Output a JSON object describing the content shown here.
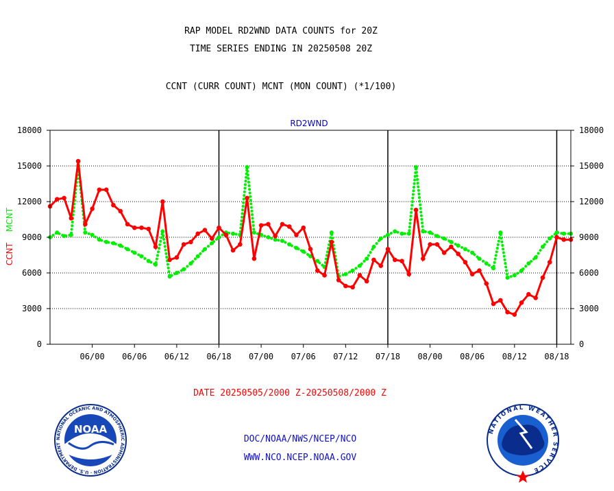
{
  "header": {
    "title": "RAP MODEL RD2WND DATA COUNTS for 20Z",
    "subtitle": "TIME SERIES ENDING IN 20250508 20Z",
    "legend_line": "CCNT (CURR COUNT) MCNT (MON COUNT) (*1/100)"
  },
  "footer": {
    "date_range": "DATE 20250505/2000 Z-20250508/2000 Z",
    "org": "DOC/NOAA/NWS/NCEP/NCO",
    "url": "WWW.NCO.NCEP.NOAA.GOV"
  },
  "logos": {
    "noaa": {
      "center_text": "NOAA",
      "ring_text": "NATIONAL OCEANIC AND ATMOSPHERIC ADMINISTRATION · U.S. DEPARTMENT OF COMMERCE"
    },
    "nws": {
      "ring_text": "NATIONAL WEATHER SERVICE"
    }
  },
  "colors": {
    "ccnt": "#ff0000",
    "mcnt": "#00ee00",
    "title_blue": "#0000cc",
    "axis": "#000000"
  },
  "chart_data": {
    "type": "line",
    "title": "RD2WND",
    "ylabel_left": [
      "CCNT",
      "MCNT"
    ],
    "ylim": [
      0,
      18000
    ],
    "yticks": [
      0,
      3000,
      6000,
      9000,
      12000,
      15000,
      18000
    ],
    "ytick_labels": [
      "0",
      "3000",
      "6000",
      "9000",
      "12000",
      "15000",
      "18000"
    ],
    "x_unit": "hours since 05/18Z",
    "xlim": [
      0,
      74
    ],
    "xticks": [
      6,
      12,
      18,
      24,
      30,
      36,
      42,
      48,
      54,
      60,
      66,
      72
    ],
    "xtick_labels": [
      "06/00",
      "06/06",
      "06/12",
      "06/18",
      "07/00",
      "07/06",
      "07/12",
      "07/18",
      "08/00",
      "08/06",
      "08/12",
      "08/18"
    ],
    "day_boundaries": [
      24,
      48,
      72
    ],
    "grid": "horizontal",
    "series": [
      {
        "name": "CCNT",
        "color": "#ff0000",
        "x": [
          0,
          1,
          2,
          3,
          4,
          5,
          6,
          7,
          8,
          9,
          10,
          11,
          12,
          13,
          14,
          15,
          16,
          17,
          18,
          19,
          20,
          21,
          22,
          23,
          24,
          25,
          26,
          27,
          28,
          29,
          30,
          31,
          32,
          33,
          34,
          35,
          36,
          37,
          38,
          39,
          40,
          41,
          42,
          43,
          44,
          45,
          46,
          47,
          48,
          49,
          50,
          51,
          52,
          53,
          54,
          55,
          56,
          57,
          58,
          59,
          60,
          61,
          62,
          63,
          64,
          65,
          66,
          67,
          68,
          69,
          70,
          71,
          72,
          73,
          74
        ],
        "values": [
          11600,
          12200,
          12300,
          10600,
          15400,
          10100,
          11400,
          13000,
          13000,
          11700,
          11200,
          10100,
          9800,
          9800,
          9700,
          8200,
          12000,
          7100,
          7300,
          8400,
          8600,
          9300,
          9600,
          8900,
          9800,
          9200,
          7900,
          8400,
          12300,
          7200,
          10000,
          10100,
          9100,
          10100,
          9900,
          9200,
          9800,
          8000,
          6200,
          5800,
          8600,
          5400,
          4900,
          4800,
          5800,
          5300,
          7100,
          6600,
          8000,
          7100,
          7000,
          5900,
          11300,
          7200,
          8400,
          8400,
          7700,
          8200,
          7600,
          6900,
          5900,
          6200,
          5100,
          3400,
          3700,
          2700,
          2500,
          3500,
          4200,
          3900,
          5600,
          6900,
          9000,
          8800,
          8800
        ]
      },
      {
        "name": "MCNT",
        "color": "#00ee00",
        "x": [
          0,
          1,
          2,
          3,
          4,
          5,
          6,
          7,
          8,
          9,
          10,
          11,
          12,
          13,
          14,
          15,
          16,
          17,
          18,
          19,
          20,
          21,
          22,
          23,
          24,
          25,
          26,
          27,
          28,
          29,
          30,
          31,
          32,
          33,
          34,
          35,
          36,
          37,
          38,
          39,
          40,
          41,
          42,
          43,
          44,
          45,
          46,
          47,
          48,
          49,
          50,
          51,
          52,
          53,
          54,
          55,
          56,
          57,
          58,
          59,
          60,
          61,
          62,
          63,
          64,
          65,
          66,
          67,
          68,
          69,
          70,
          71,
          72,
          73,
          74
        ],
        "values": [
          9000,
          9400,
          9100,
          9200,
          15000,
          9400,
          9200,
          8800,
          8600,
          8500,
          8300,
          8000,
          7700,
          7400,
          7000,
          6700,
          9500,
          5700,
          6000,
          6300,
          6800,
          7400,
          8000,
          8500,
          9000,
          9400,
          9300,
          9200,
          14900,
          9400,
          9200,
          9000,
          8800,
          8700,
          8400,
          8100,
          7800,
          7400,
          7000,
          6500,
          9400,
          5700,
          5900,
          6200,
          6600,
          7200,
          8200,
          8900,
          9200,
          9500,
          9300,
          9300,
          14900,
          9500,
          9400,
          9100,
          8900,
          8600,
          8300,
          8000,
          7700,
          7200,
          6800,
          6400,
          9400,
          5600,
          5800,
          6200,
          6800,
          7300,
          8200,
          8900,
          9400,
          9300,
          9300
        ]
      }
    ]
  }
}
